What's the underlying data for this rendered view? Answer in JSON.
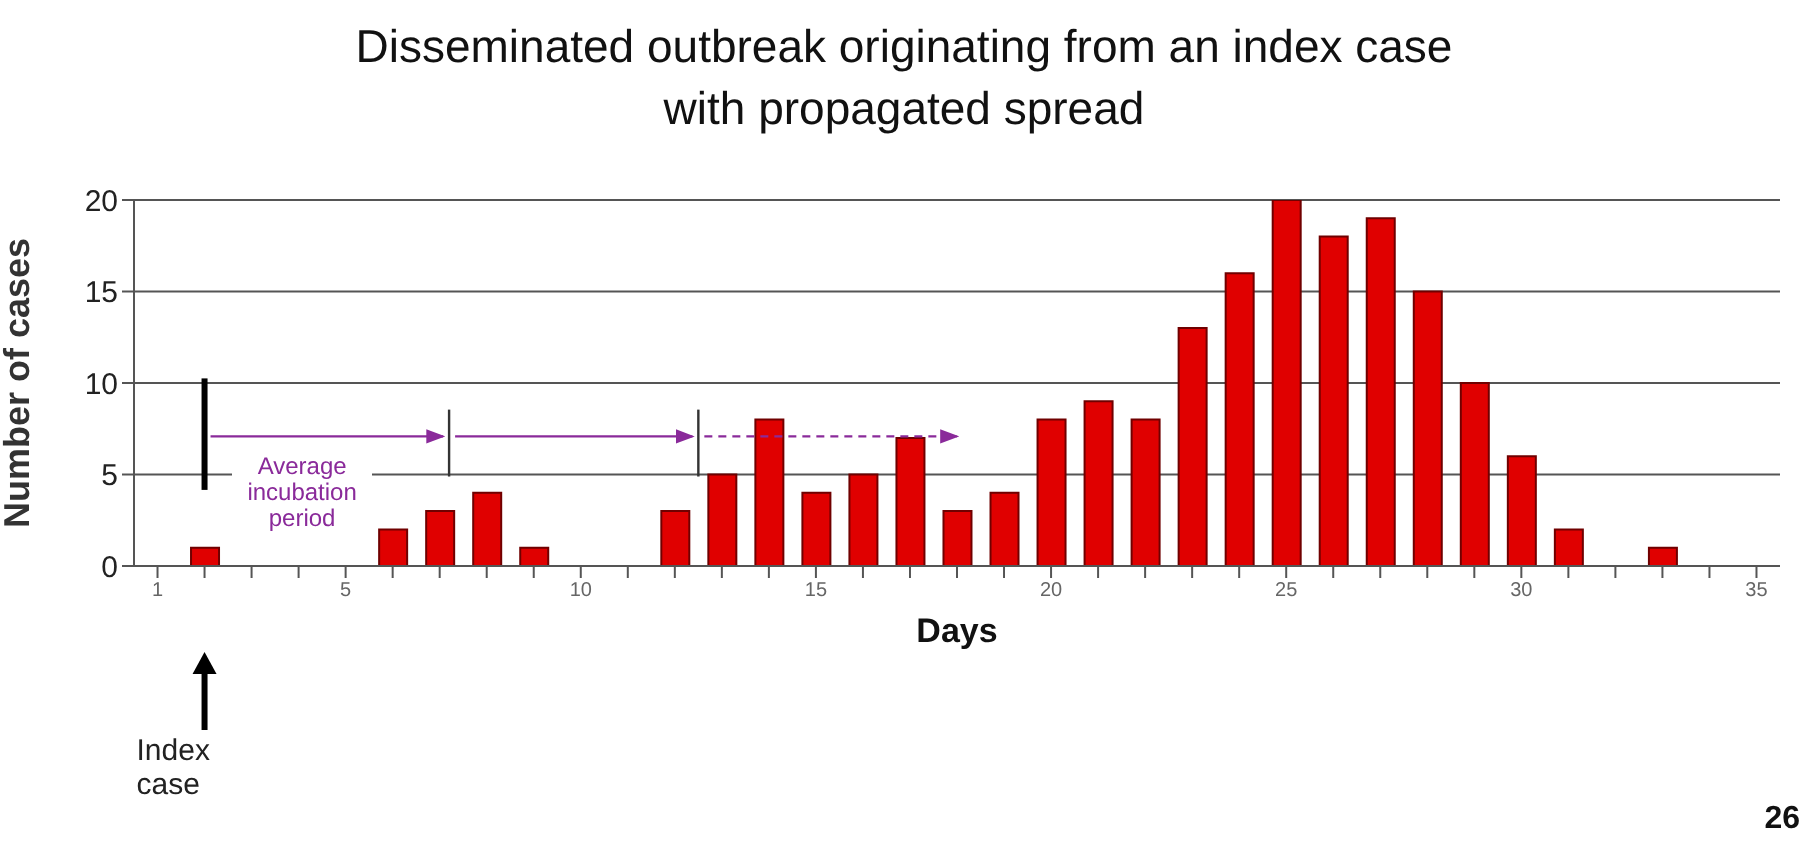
{
  "chart_data": {
    "type": "bar",
    "title": "Disseminated outbreak originating from an index case\nwith propagated spread",
    "xlabel": "Days",
    "ylabel": "Number of cases",
    "categories": [
      "1",
      null,
      null,
      null,
      "5",
      null,
      null,
      null,
      null,
      "10",
      null,
      null,
      null,
      null,
      "15",
      null,
      null,
      null,
      null,
      "20",
      null,
      null,
      null,
      null,
      "25",
      null,
      null,
      null,
      null,
      "30",
      null,
      null,
      null,
      null,
      "35"
    ],
    "values": [
      0,
      1,
      0,
      0,
      0,
      2,
      3,
      4,
      1,
      0,
      0,
      3,
      5,
      8,
      4,
      5,
      7,
      3,
      4,
      8,
      9,
      8,
      13,
      16,
      20,
      18,
      19,
      15,
      10,
      6,
      2,
      0,
      1,
      0,
      0
    ],
    "color": "#e00000",
    "ylim": [
      0,
      20
    ],
    "yticks": [
      0,
      5,
      10,
      15,
      20
    ],
    "grid": "y",
    "annotations": [
      "Average incubation period",
      "Index case",
      "26"
    ]
  }
}
